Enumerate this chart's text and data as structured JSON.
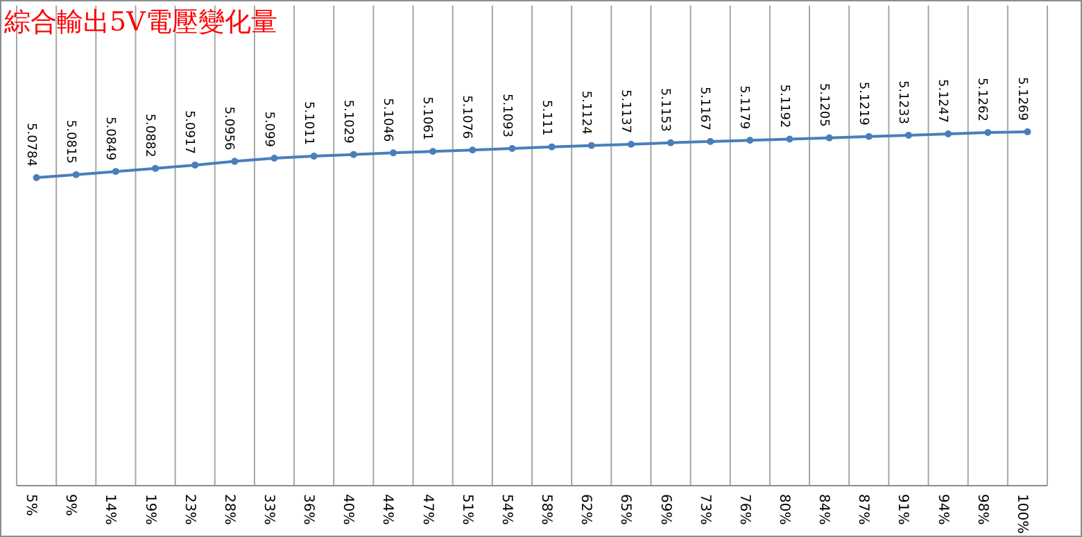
{
  "chart_data": {
    "type": "line",
    "title": "綜合輸出5V電壓變化量",
    "categories": [
      "5%",
      "9%",
      "14%",
      "19%",
      "23%",
      "28%",
      "33%",
      "36%",
      "40%",
      "44%",
      "47%",
      "51%",
      "54%",
      "58%",
      "62%",
      "65%",
      "69%",
      "73%",
      "76%",
      "80%",
      "84%",
      "87%",
      "91%",
      "94%",
      "98%",
      "100%"
    ],
    "series": [
      {
        "color": "#4a7ebb",
        "values": [
          5.0784,
          5.0815,
          5.0849,
          5.0882,
          5.0917,
          5.0956,
          5.099,
          5.1011,
          5.1029,
          5.1046,
          5.1061,
          5.1076,
          5.1093,
          5.111,
          5.1124,
          5.1137,
          5.1153,
          5.1167,
          5.1179,
          5.1192,
          5.1205,
          5.1219,
          5.1233,
          5.1247,
          5.1262,
          5.1269
        ]
      }
    ],
    "data_labels": true,
    "grid": "x",
    "marker": "circle",
    "line_style": "solid"
  }
}
